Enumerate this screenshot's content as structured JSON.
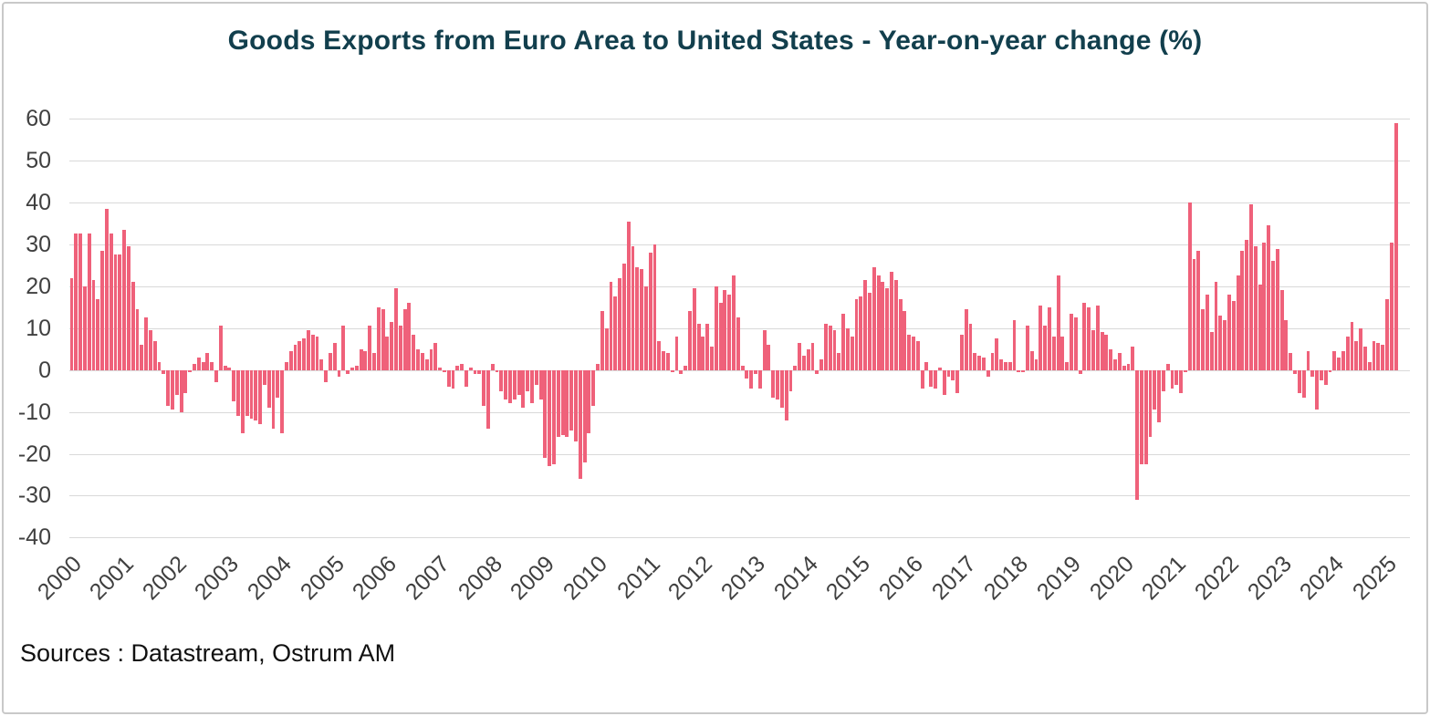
{
  "footer": {
    "source": "Sources : Datastream, Ostrum AM"
  },
  "colors": {
    "bar": "#ef617a",
    "grid": "#d9d9d9",
    "axis_label": "#404040",
    "title": "#123f4d",
    "frame_border": "#c9c9c9",
    "background": "#ffffff"
  },
  "chart_data": {
    "type": "bar",
    "title": "Goods Exports from Euro Area to United States - Year-on-year change (%)",
    "xlabel": "",
    "ylabel": "Year-on-year change (%)",
    "unit": "%",
    "frequency": "monthly",
    "x_start": "2000-01",
    "x_end": "2025-03",
    "ylim": [
      -40,
      60
    ],
    "yticks": [
      60,
      50,
      40,
      30,
      20,
      10,
      0,
      -10,
      -20,
      -30,
      -40
    ],
    "xtick_labels": [
      "2000",
      "2001",
      "2002",
      "2003",
      "2004",
      "2005",
      "2006",
      "2007",
      "2008",
      "2009",
      "2010",
      "2011",
      "2012",
      "2013",
      "2014",
      "2015",
      "2016",
      "2017",
      "2018",
      "2019",
      "2020",
      "2021",
      "2022",
      "2023",
      "2024",
      "2025"
    ],
    "grid": true,
    "legend": "none",
    "series": [
      {
        "name": "Goods exports from Euro Area to United States, year-on-year change (%)",
        "values_by_year": {
          "2000": [
            22,
            32.5,
            32.5,
            20,
            32.5,
            21.5,
            17,
            28.5,
            38.5,
            32.5,
            27.5,
            27.5
          ],
          "2001": [
            33.5,
            29.5,
            21,
            14.5,
            6,
            12.5,
            9.5,
            7,
            2,
            -1,
            -8.5,
            -9.5
          ],
          "2002": [
            -6,
            -10,
            -5.5,
            -0.5,
            1.5,
            3,
            2,
            4,
            2,
            -3,
            10.5,
            1
          ],
          "2003": [
            0.5,
            -7.5,
            -11,
            -15,
            -11,
            -11.5,
            -12,
            -13,
            -3.5,
            -9,
            -14,
            -6.5
          ],
          "2004": [
            -15,
            2,
            4.5,
            6,
            7,
            7.5,
            9.5,
            8.5,
            8,
            2.5,
            -3,
            4
          ],
          "2005": [
            6.5,
            -1.5,
            10.5,
            -1,
            0.5,
            1,
            5,
            4.5,
            10.5,
            4,
            15,
            14.5
          ],
          "2006": [
            8,
            11.5,
            19.5,
            10.5,
            14.5,
            16,
            8.5,
            5,
            4,
            2.5,
            5,
            6.5
          ],
          "2007": [
            0.5,
            -0.5,
            -4,
            -4.5,
            1,
            1.5,
            -4,
            0.5,
            -1,
            -1,
            -8.5,
            -14
          ],
          "2008": [
            1.5,
            -0.5,
            -5,
            -7,
            -8,
            -7,
            -6,
            -9,
            -5,
            -8,
            -3.5,
            -7
          ],
          "2009": [
            -21,
            -23,
            -22.5,
            -16,
            -15.5,
            -16,
            -14.5,
            -17,
            -26,
            -22,
            -15,
            -8.5
          ],
          "2010": [
            1.5,
            14,
            10,
            21,
            17.5,
            22,
            25.5,
            35.5,
            29.5,
            24.5,
            24,
            20
          ],
          "2011": [
            28,
            30,
            7,
            4.5,
            4,
            -0.5,
            8,
            -1,
            1,
            14,
            19.5,
            11
          ],
          "2012": [
            8,
            11,
            5.5,
            20,
            16,
            19,
            18,
            22.5,
            12.5,
            1,
            -2,
            -4.5
          ],
          "2013": [
            -1,
            -4.5,
            9.5,
            6,
            -6.5,
            -7,
            -9,
            -12,
            -5,
            1,
            6.5,
            3.5
          ],
          "2014": [
            5,
            6.5,
            -1,
            2.5,
            11,
            10.5,
            9.5,
            4,
            13.5,
            10,
            8,
            17
          ],
          "2015": [
            17.5,
            21.5,
            18.5,
            24.5,
            22.5,
            21,
            19.5,
            23.5,
            21.5,
            17,
            14,
            8.5
          ],
          "2016": [
            8,
            7,
            -4.5,
            2,
            -4,
            -4.5,
            0.5,
            -6,
            -1.5,
            -2.5,
            -5.5,
            8.5
          ],
          "2017": [
            14.5,
            11,
            4,
            3.5,
            3,
            -1.5,
            4,
            7.5,
            2.5,
            2,
            2,
            12
          ],
          "2018": [
            -0.5,
            -0.5,
            10.5,
            4.5,
            2.5,
            15.5,
            10.5,
            15,
            8,
            22.5,
            8,
            2
          ],
          "2019": [
            13.5,
            12.5,
            -1,
            16,
            15,
            9.5,
            15.5,
            9,
            8.5,
            5,
            2.5,
            4
          ],
          "2020": [
            1,
            1.5,
            5.5,
            -31,
            -22.5,
            -22.5,
            -16,
            -9.5,
            -12.5,
            -5,
            1.5,
            -4.5
          ],
          "2021": [
            -3.5,
            -5.5,
            -0.5,
            40,
            26.5,
            28.5,
            14.5,
            18,
            9,
            21,
            13,
            12
          ],
          "2022": [
            18,
            16.5,
            22.5,
            28.5,
            31,
            39.5,
            29.5,
            20.5,
            30.5,
            34.5,
            26,
            29
          ],
          "2023": [
            19,
            12,
            4,
            -1,
            -5.5,
            -6.5,
            4.5,
            -1.5,
            -9.5,
            -2.5,
            -3.5,
            -0.5
          ],
          "2024": [
            4.5,
            3,
            4.5,
            8,
            11.5,
            7,
            10,
            5.5,
            2,
            7,
            6.5,
            6
          ],
          "2025": [
            17,
            30.5,
            59
          ]
        }
      }
    ]
  }
}
